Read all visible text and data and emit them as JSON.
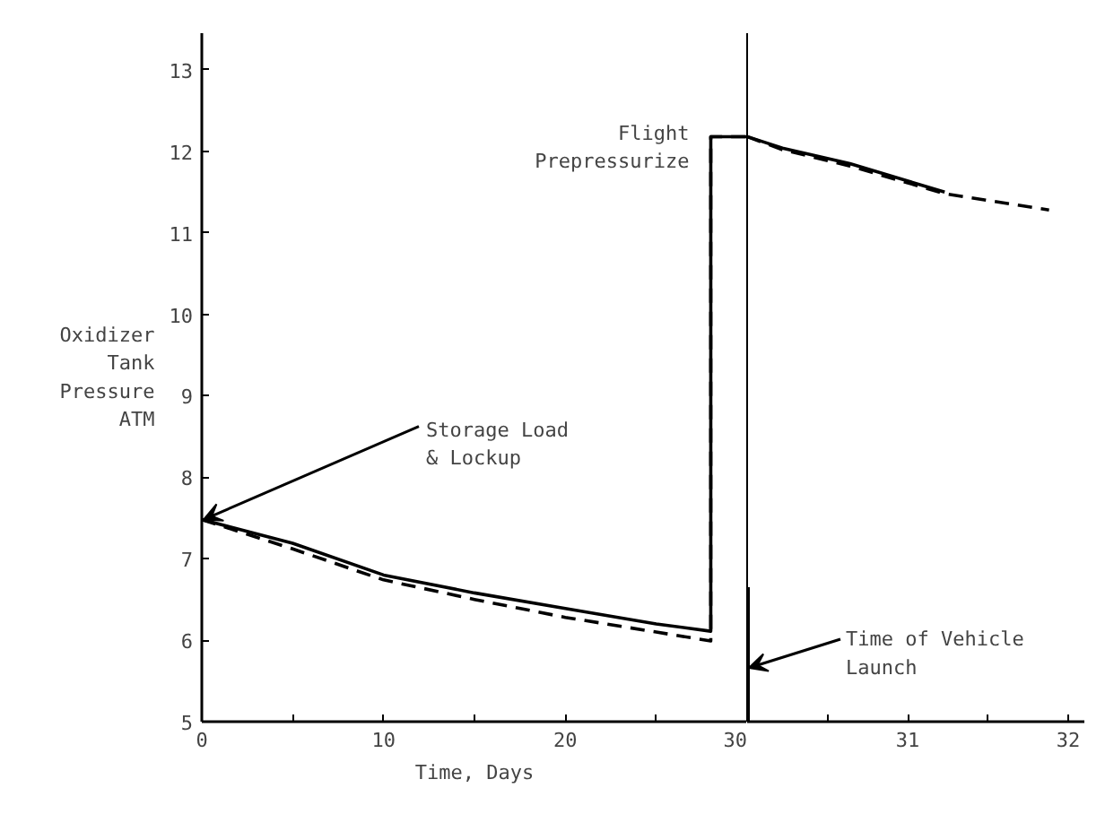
{
  "chart_data": [
    {
      "type": "line",
      "xlabel": "Time, Days",
      "ylabel": "Oxidizer\nTank\nPressure\nATM",
      "xlim": [
        0,
        30
      ],
      "xticks": [
        0,
        {
          "value": 5,
          "label": null
        },
        10,
        {
          "value": 15,
          "label": null
        },
        20,
        {
          "value": 25,
          "label": null
        },
        30
      ],
      "ylim": [
        5,
        13.45
      ],
      "yticks": [
        5,
        6,
        7,
        8,
        9,
        10,
        11,
        12,
        13
      ],
      "grid": false,
      "marker": "none",
      "series": [
        {
          "color": "#000000",
          "line_style": "solid",
          "x": [
            0,
            5,
            10,
            15,
            20,
            25,
            28,
            28,
            30
          ],
          "values": [
            7.48,
            7.19,
            6.8,
            6.58,
            6.39,
            6.2,
            6.11,
            12.18,
            12.18
          ]
        },
        {
          "color": "#000000",
          "line_style": "dashed",
          "x": [
            0,
            5,
            10,
            15,
            20,
            25,
            28,
            28,
            30
          ],
          "values": [
            7.48,
            7.12,
            6.74,
            6.5,
            6.28,
            6.1,
            5.99,
            12.18,
            12.18
          ]
        }
      ],
      "annotations": [
        {
          "text": "Storage Load\n& Lockup",
          "x": 0,
          "y": 7.48
        },
        {
          "text": "Flight\nPrepressurize",
          "x": 28,
          "y": 12.18
        }
      ]
    },
    {
      "type": "line",
      "xlim": [
        30,
        32.1
      ],
      "xticks": [
        {
          "value": 30.5,
          "label": null
        },
        31,
        {
          "value": 31.5,
          "label": null
        },
        32
      ],
      "ylim": [
        5,
        13.45
      ],
      "yticks": [
        5,
        6,
        7,
        8,
        9,
        10,
        11,
        12,
        13
      ],
      "tick_labels": "x",
      "grid": false,
      "marker": "none",
      "series": [
        {
          "color": "#000000",
          "line_style": "solid",
          "x": [
            30,
            30.22,
            30.64,
            31.23
          ],
          "values": [
            12.18,
            12.04,
            11.85,
            11.5
          ]
        },
        {
          "color": "#000000",
          "line_style": "dashed",
          "x": [
            30,
            30.22,
            30.64,
            31.23,
            31.88
          ],
          "values": [
            12.18,
            12.02,
            11.82,
            11.48,
            11.28
          ]
        }
      ],
      "ref_lines": [
        {
          "axis": "x",
          "value": 30,
          "label": "Time of Vehicle\nLaunch"
        }
      ]
    }
  ]
}
